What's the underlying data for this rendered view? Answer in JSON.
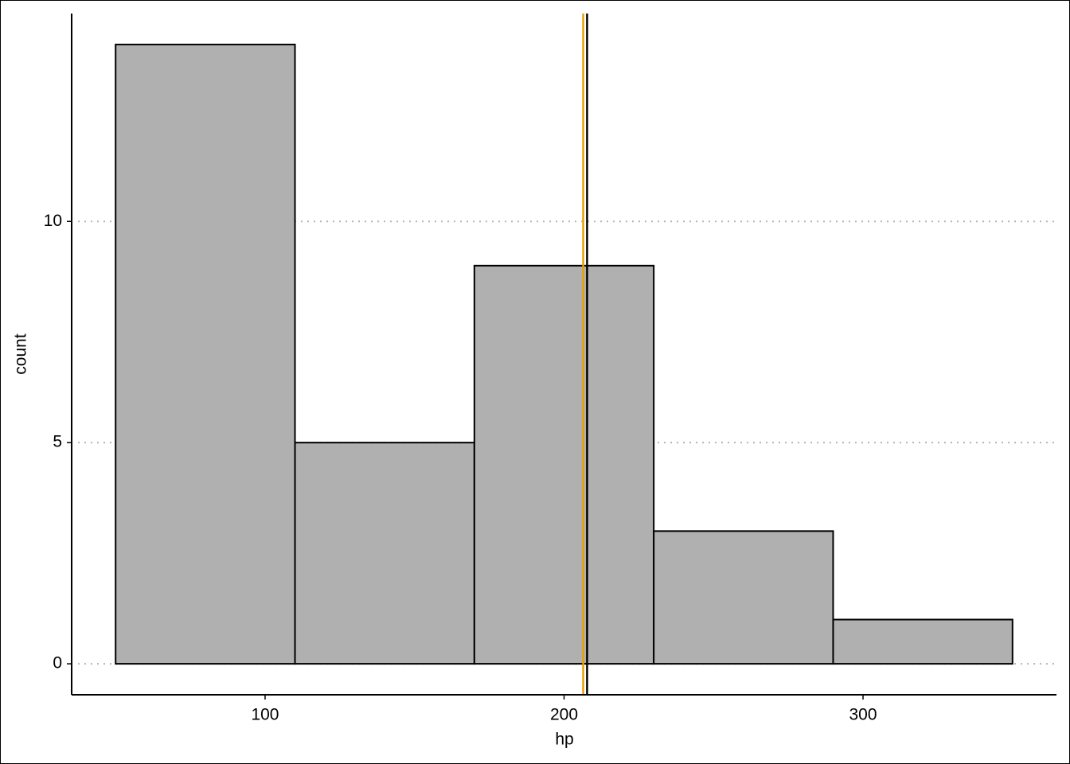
{
  "chart_data": {
    "type": "histogram",
    "x_label": "hp",
    "y_label": "count",
    "bins": [
      50,
      110,
      170,
      230,
      290,
      350
    ],
    "values": [
      14,
      5,
      9,
      3,
      1
    ],
    "color": "#b0b0b0",
    "xlim": [
      35.3,
      364.7
    ],
    "xticks": [
      100,
      200,
      300
    ],
    "ylim": [
      -0.7,
      14.7
    ],
    "yticks": [
      0,
      5,
      10
    ],
    "grid": true,
    "vlines": [
      {
        "value": 206.4,
        "color": "#e69f00"
      },
      {
        "value": 207.7,
        "color": "#000000"
      }
    ]
  }
}
